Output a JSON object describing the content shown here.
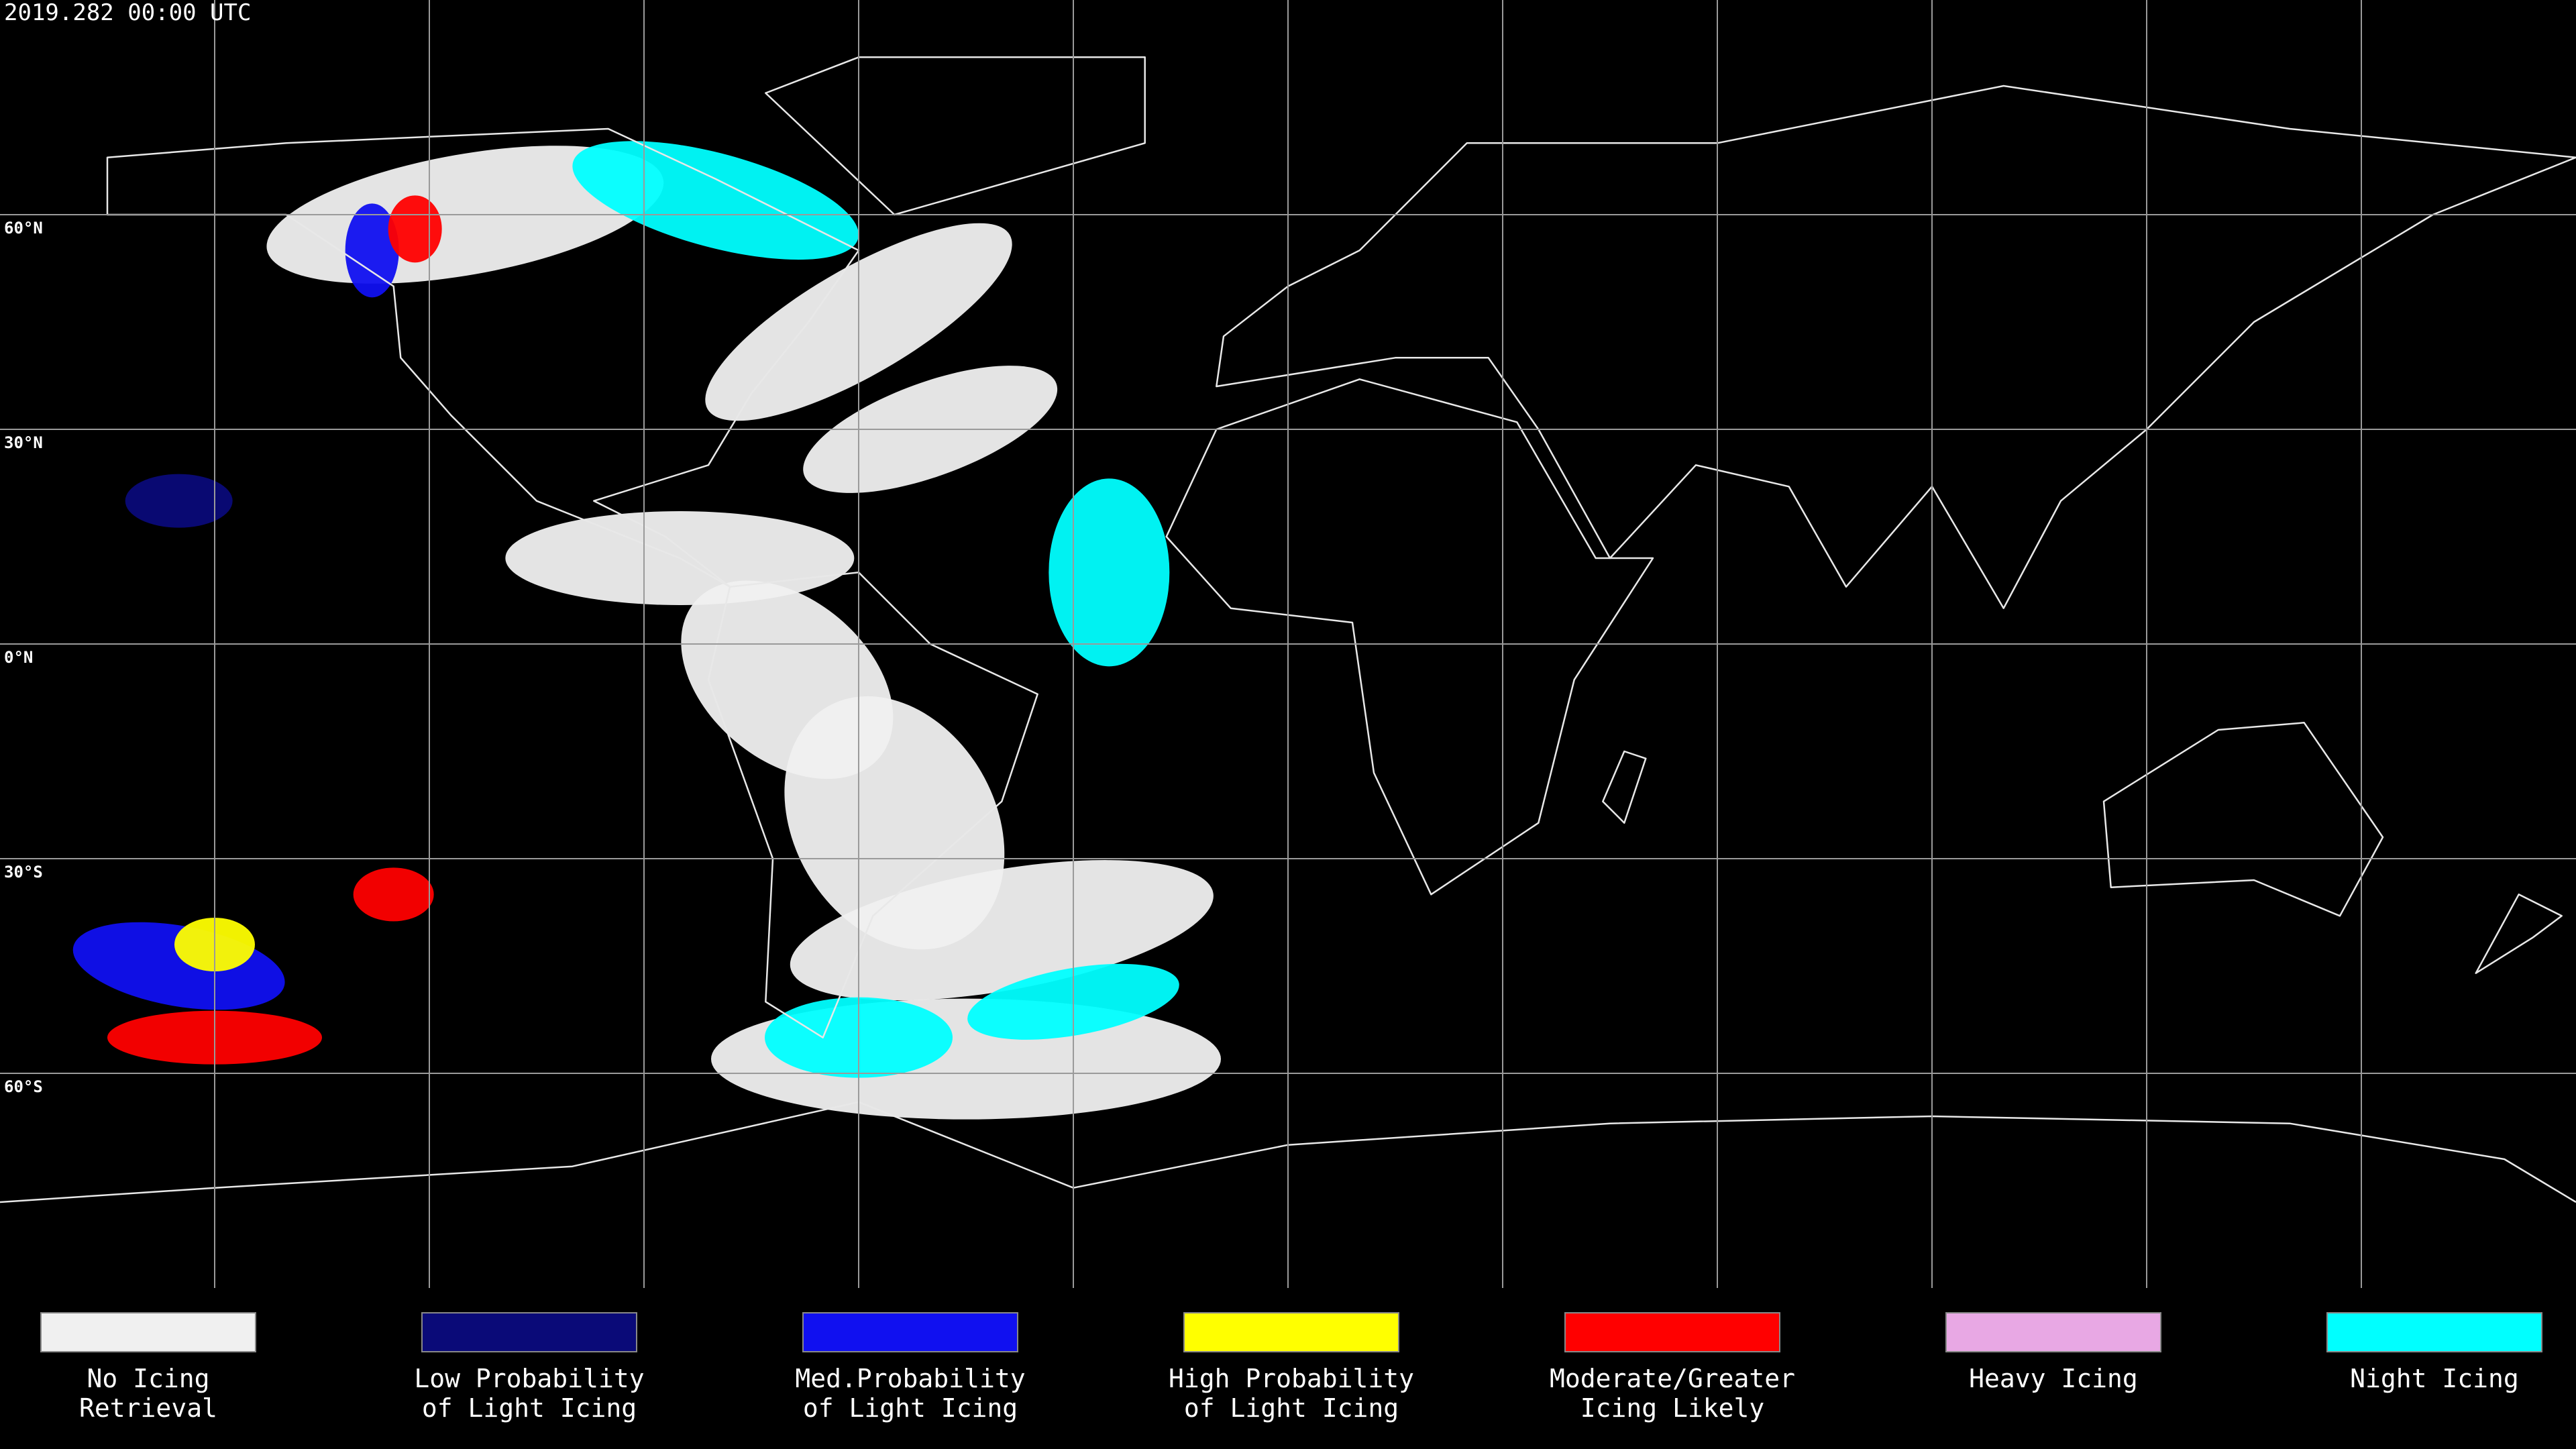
{
  "header": {
    "title": "2019.282 00:00 UTC"
  },
  "map": {
    "lat_labels": [
      "60°N",
      "30°N",
      "0°N",
      "30°S",
      "60°S"
    ]
  },
  "legend": [
    {
      "color": "#f0f0f0",
      "lines": [
        "No Icing",
        "Retrieval"
      ]
    },
    {
      "color": "#0a0a78",
      "lines": [
        "Low Probability",
        "of Light Icing"
      ]
    },
    {
      "color": "#1010f0",
      "lines": [
        "Med.Probability",
        "of Light Icing"
      ]
    },
    {
      "color": "#ffff00",
      "lines": [
        "High Probability",
        "of Light Icing"
      ]
    },
    {
      "color": "#ff0000",
      "lines": [
        "Moderate/Greater",
        "Icing Likely"
      ]
    },
    {
      "color": "#e8a8e4",
      "lines": [
        "Heavy Icing"
      ]
    },
    {
      "color": "#00ffff",
      "lines": [
        "Night Icing"
      ]
    }
  ]
}
